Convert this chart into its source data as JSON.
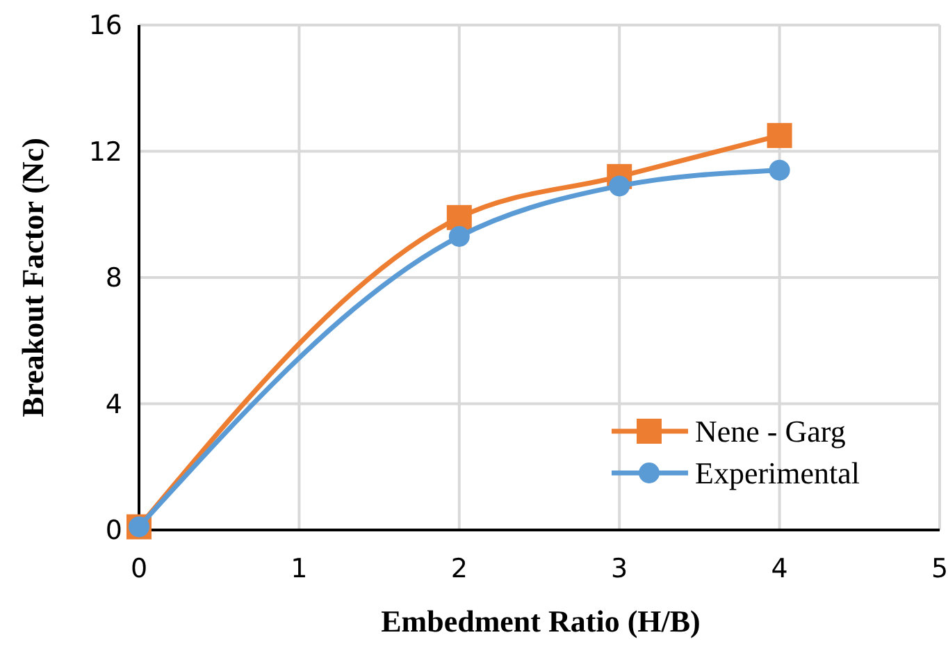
{
  "chart_data": {
    "type": "line",
    "xlabel": "Embedment Ratio (H/B)",
    "ylabel": "Breakout Factor (Nc)",
    "x": [
      0,
      2,
      3,
      4
    ],
    "series": [
      {
        "name": "Nene - Garg",
        "color": "#ed7d31",
        "values": [
          0.1,
          9.9,
          11.2,
          12.5
        ],
        "marker": "square"
      },
      {
        "name": "Experimental",
        "color": "#5b9bd5",
        "values": [
          0.1,
          9.3,
          10.9,
          11.4
        ],
        "marker": "circle"
      }
    ],
    "xlim": [
      0,
      5
    ],
    "xticks": [
      0,
      1,
      2,
      3,
      4,
      5
    ],
    "ylim": [
      0,
      16
    ],
    "yticks": [
      0,
      4,
      8,
      12,
      16
    ],
    "grid": true,
    "legend": "bottom right",
    "line_style": "solid"
  }
}
